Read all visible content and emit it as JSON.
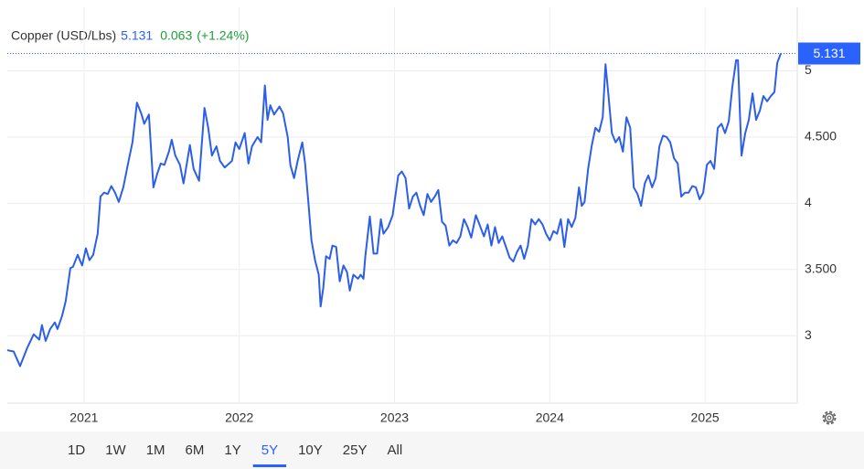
{
  "chart_data": {
    "type": "line",
    "title": "Copper (USD/Lbs)",
    "change": 0.063,
    "change_percent": {
      "value": 1.24,
      "label": "(+1.24%)"
    },
    "color": "#2d5ee8",
    "xlim": [
      2020.506,
      2025.594
    ],
    "xticks": [
      2021,
      2022,
      2023,
      2024,
      2025
    ],
    "ylim": [
      2.49,
      5.48
    ],
    "yticks": [
      3,
      {
        "value": 3.5,
        "label": "3.500"
      },
      4,
      {
        "value": 4.5,
        "label": "4.500"
      },
      5
    ],
    "grid": true,
    "ranges": [
      "1D",
      "1W",
      "1M",
      "6M",
      "1Y",
      "5Y",
      "10Y",
      "25Y",
      "All"
    ],
    "selected_range_index": 5,
    "x": [
      2020.506,
      2020.547,
      2020.588,
      2020.635,
      2020.676,
      2020.712,
      2020.729,
      2020.753,
      2020.782,
      2020.812,
      2020.829,
      2020.859,
      2020.882,
      2020.912,
      2020.929,
      2020.959,
      2020.988,
      2021.012,
      2021.035,
      2021.059,
      2021.088,
      2021.106,
      2021.129,
      2021.153,
      2021.176,
      2021.2,
      2021.224,
      2021.253,
      2021.282,
      2021.312,
      2021.341,
      2021.371,
      2021.388,
      2021.418,
      2021.447,
      2021.471,
      2021.494,
      2021.518,
      2021.547,
      2021.565,
      2021.588,
      2021.618,
      2021.641,
      2021.665,
      2021.682,
      2021.706,
      2021.741,
      2021.776,
      2021.8,
      2021.824,
      2021.853,
      2021.876,
      2021.906,
      2021.953,
      2021.976,
      2022.0,
      2022.035,
      2022.059,
      2022.082,
      2022.118,
      2022.141,
      2022.165,
      2022.182,
      2022.2,
      2022.224,
      2022.259,
      2022.282,
      2022.312,
      2022.329,
      2022.353,
      2022.376,
      2022.406,
      2022.424,
      2022.447,
      2022.465,
      2022.488,
      2022.512,
      2022.524,
      2022.541,
      2022.559,
      2022.582,
      2022.6,
      2022.624,
      2022.647,
      2022.671,
      2022.694,
      2022.712,
      2022.735,
      2022.765,
      2022.782,
      2022.8,
      2022.812,
      2022.841,
      2022.865,
      2022.888,
      2022.912,
      2022.929,
      2022.959,
      2022.988,
      2023.024,
      2023.047,
      2023.071,
      2023.094,
      2023.118,
      2023.141,
      2023.165,
      2023.188,
      2023.212,
      2023.235,
      2023.259,
      2023.282,
      2023.306,
      2023.329,
      2023.353,
      2023.376,
      2023.4,
      2023.424,
      2023.447,
      2023.471,
      2023.494,
      2023.524,
      2023.547,
      2023.576,
      2023.6,
      2023.624,
      2023.647,
      2023.671,
      2023.694,
      2023.718,
      2023.741,
      2023.765,
      2023.788,
      2023.812,
      2023.835,
      2023.859,
      2023.882,
      2023.906,
      2023.929,
      2023.953,
      2023.976,
      2024.0,
      2024.024,
      2024.047,
      2024.071,
      2024.094,
      2024.118,
      2024.141,
      2024.165,
      2024.188,
      2024.206,
      2024.224,
      2024.247,
      2024.271,
      2024.294,
      2024.318,
      2024.341,
      2024.359,
      2024.376,
      2024.4,
      2024.424,
      2024.447,
      2024.471,
      2024.494,
      2024.518,
      2024.541,
      2024.565,
      2024.588,
      2024.612,
      2024.635,
      2024.659,
      2024.682,
      2024.706,
      2024.729,
      2024.753,
      2024.776,
      2024.8,
      2024.824,
      2024.847,
      2024.871,
      2024.894,
      2024.918,
      2024.941,
      2024.965,
      2024.988,
      2025.012,
      2025.035,
      2025.059,
      2025.082,
      2025.106,
      2025.129,
      2025.153,
      2025.176,
      2025.2,
      2025.212,
      2025.235,
      2025.259,
      2025.282,
      2025.306,
      2025.329,
      2025.353,
      2025.376,
      2025.4,
      2025.424,
      2025.447,
      2025.465,
      2025.488
    ],
    "values": [
      2.89,
      2.88,
      2.77,
      2.91,
      3.01,
      2.97,
      3.08,
      2.96,
      3.05,
      3.1,
      3.05,
      3.15,
      3.26,
      3.51,
      3.52,
      3.61,
      3.53,
      3.66,
      3.57,
      3.61,
      3.77,
      4.05,
      4.08,
      4.07,
      4.13,
      4.08,
      4.01,
      4.12,
      4.29,
      4.46,
      4.76,
      4.67,
      4.6,
      4.67,
      4.12,
      4.22,
      4.3,
      4.29,
      4.39,
      4.48,
      4.36,
      4.29,
      4.15,
      4.32,
      4.44,
      4.26,
      4.17,
      4.72,
      4.57,
      4.36,
      4.43,
      4.32,
      4.27,
      4.32,
      4.46,
      4.41,
      4.53,
      4.3,
      4.43,
      4.5,
      4.46,
      4.89,
      4.63,
      4.74,
      4.67,
      4.73,
      4.68,
      4.5,
      4.29,
      4.19,
      4.32,
      4.46,
      4.3,
      3.98,
      3.72,
      3.57,
      3.46,
      3.22,
      3.36,
      3.6,
      3.58,
      3.68,
      3.67,
      3.41,
      3.53,
      3.48,
      3.34,
      3.46,
      3.43,
      3.46,
      3.43,
      3.6,
      3.9,
      3.62,
      3.62,
      3.88,
      3.77,
      3.82,
      3.91,
      4.21,
      4.24,
      4.19,
      3.96,
      4.05,
      4.08,
      3.98,
      3.91,
      4.07,
      4.01,
      4.05,
      4.1,
      3.86,
      3.83,
      3.68,
      3.72,
      3.7,
      3.75,
      3.88,
      3.82,
      3.74,
      3.91,
      3.84,
      3.75,
      3.84,
      3.68,
      3.82,
      3.7,
      3.75,
      3.67,
      3.59,
      3.56,
      3.63,
      3.68,
      3.58,
      3.68,
      3.88,
      3.84,
      3.88,
      3.84,
      3.77,
      3.72,
      3.79,
      3.77,
      3.88,
      3.67,
      3.88,
      3.82,
      3.89,
      4.12,
      3.98,
      4.01,
      4.26,
      4.44,
      4.57,
      4.54,
      4.65,
      5.05,
      4.84,
      4.53,
      4.46,
      4.5,
      4.39,
      4.65,
      4.57,
      4.12,
      4.07,
      3.98,
      4.15,
      4.21,
      4.12,
      4.19,
      4.43,
      4.51,
      4.5,
      4.46,
      4.34,
      4.3,
      4.05,
      4.08,
      4.08,
      4.13,
      4.12,
      4.03,
      4.08,
      4.29,
      4.32,
      4.26,
      4.57,
      4.6,
      4.53,
      4.62,
      4.88,
      5.08,
      5.08,
      4.36,
      4.53,
      4.63,
      4.83,
      4.63,
      4.7,
      4.81,
      4.77,
      4.81,
      4.84,
      5.06,
      5.131
    ]
  }
}
